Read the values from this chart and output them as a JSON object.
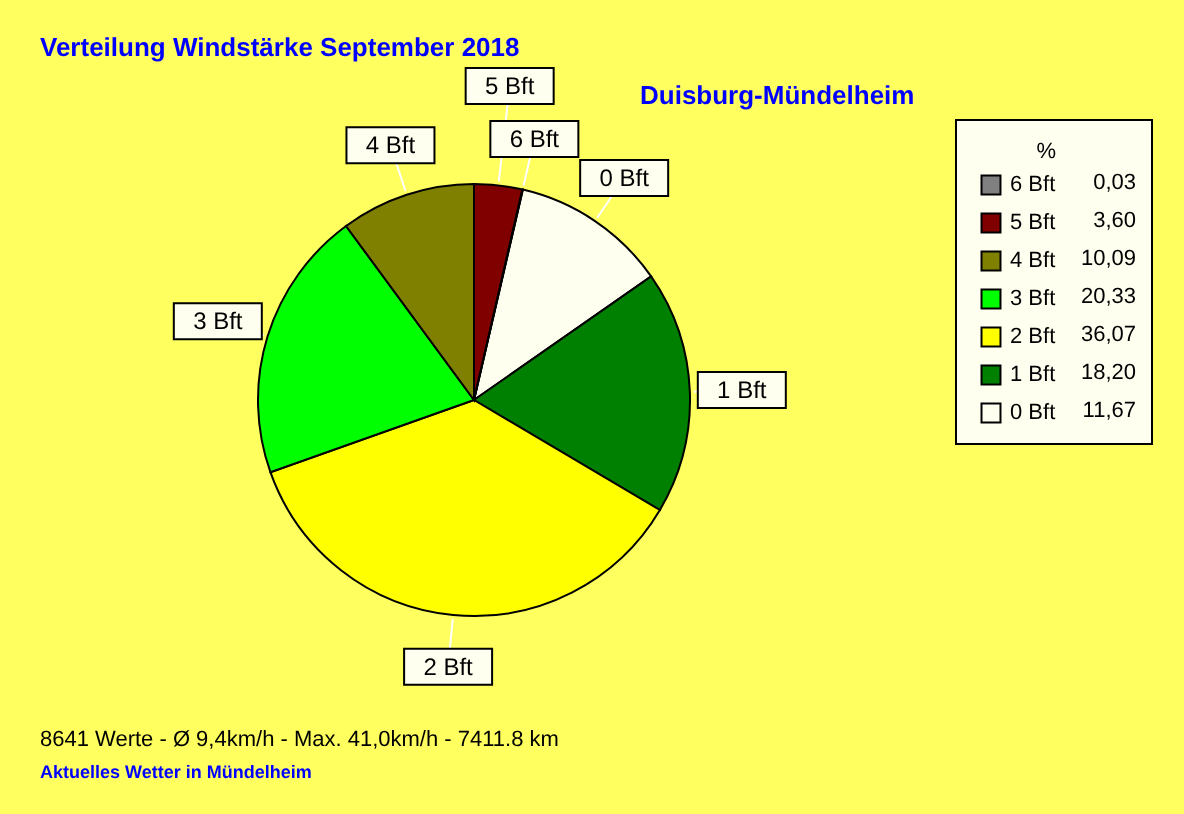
{
  "chart_data": {
    "type": "pie",
    "title": "Verteilung Windstärke  September 2018",
    "subtitle": "Duisburg-Mündelheim",
    "legend_title": "%",
    "categories": [
      "0 Bft",
      "1 Bft",
      "2 Bft",
      "3 Bft",
      "4 Bft",
      "5 Bft",
      "6 Bft"
    ],
    "values": [
      11.67,
      18.2,
      36.07,
      20.33,
      10.09,
      3.6,
      0.03
    ],
    "value_labels": [
      "11,67",
      "18,20",
      "36,07",
      "20,33",
      "10,09",
      "3,60",
      "0,03"
    ],
    "colors": [
      "#fffff0",
      "#008000",
      "#ffff00",
      "#00ff00",
      "#808000",
      "#800000",
      "#808080"
    ],
    "legend": "right",
    "annotations": [
      "8641 Werte   -   Ø 9,4km/h  -  Max. 41,0km/h   -   7411.8 km",
      "Aktuelles Wetter in Mündelheim"
    ]
  }
}
